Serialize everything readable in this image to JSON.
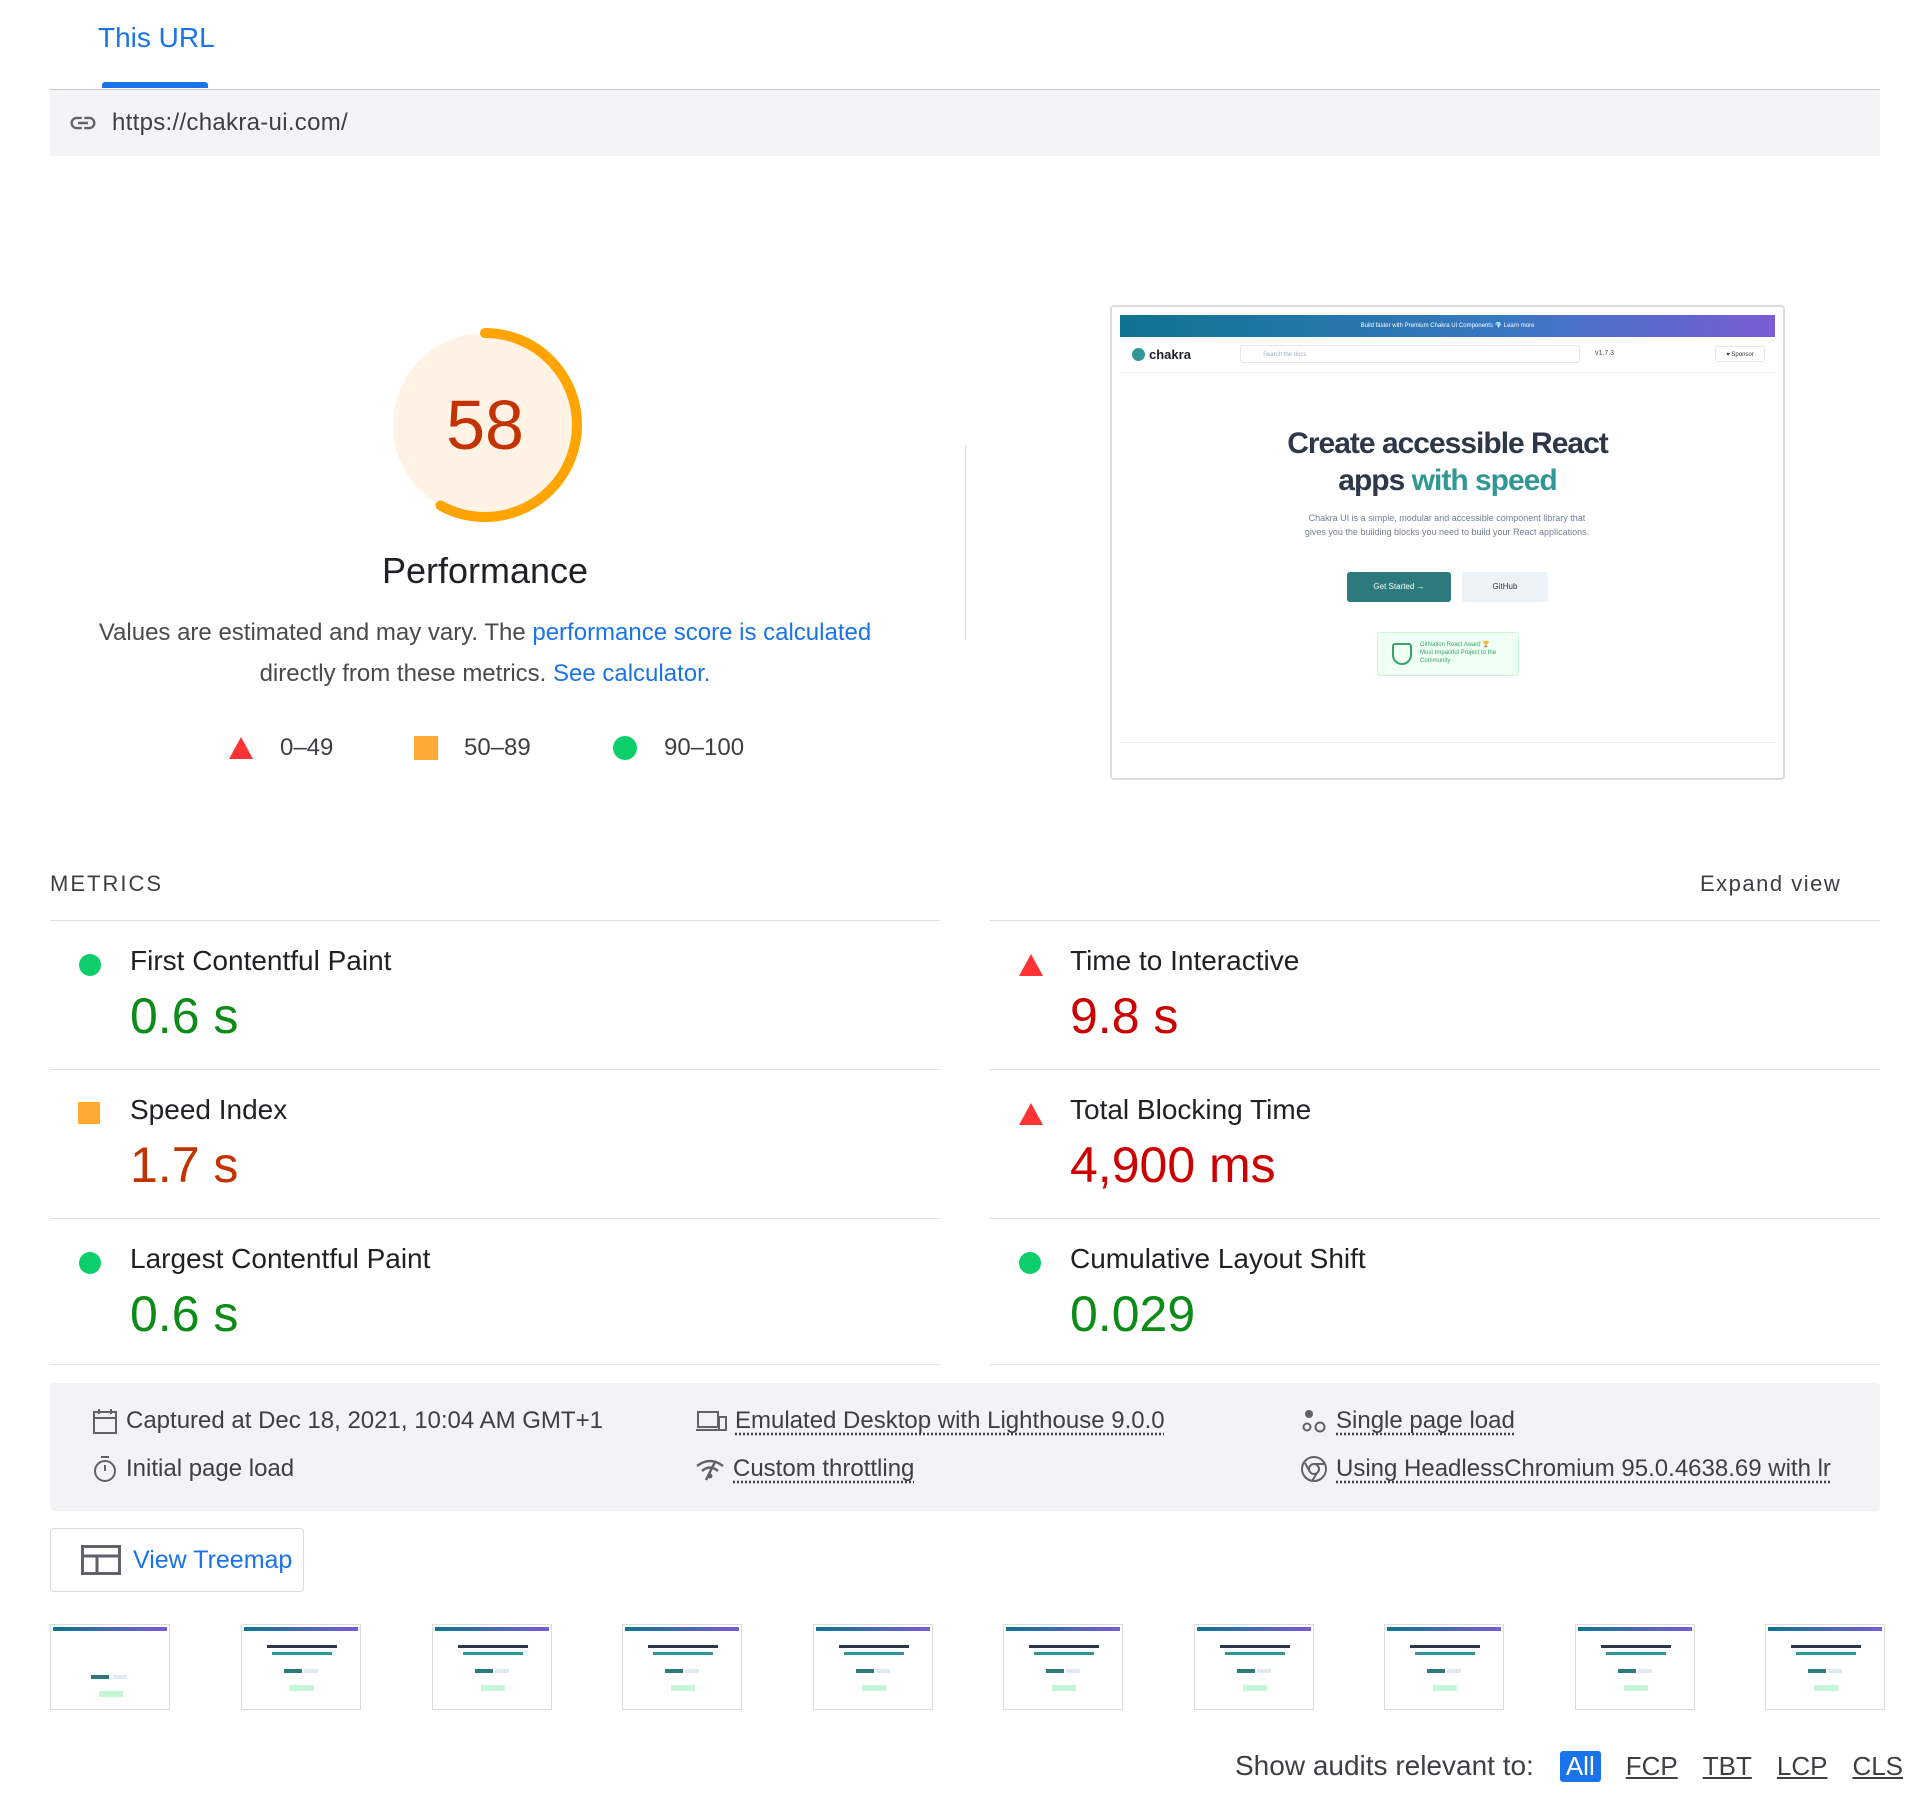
{
  "tabs": [
    {
      "label": "This URL"
    }
  ],
  "url": "https://chakra-ui.com/",
  "performance": {
    "score": "58",
    "score_value": 58,
    "title": "Performance",
    "desc_prefix": "Values are estimated and may vary. The ",
    "desc_link1": "performance score is calculated",
    "desc_middle": "directly from these metrics. ",
    "desc_link2": "See calculator."
  },
  "legend": [
    {
      "label": "0–49",
      "icon": "fail-triangle-icon",
      "color": "#ff3333"
    },
    {
      "label": "50–89",
      "icon": "average-square-icon",
      "color": "#ffaa33"
    },
    {
      "label": "90–100",
      "icon": "pass-circle-icon",
      "color": "#0cce6b"
    }
  ],
  "screenshot": {
    "banner": "Build faster with Premium Chakra UI Components 💎     Learn more",
    "logo": "chakra",
    "search_placeholder": "Search the docs",
    "version": "v1.7.3",
    "sponsor": "♥ Sponsor",
    "headline_1": "Create accessible React",
    "headline_2a": "apps ",
    "headline_2b": "with speed",
    "subtitle": "Chakra UI is a simple, modular and accessible component library that gives you the building blocks you need to build your React applications.",
    "btn_primary": "Get Started →",
    "btn_secondary": "GitHub",
    "award_line1": "GitNation React Award 🏆",
    "award_line2": "Most Impactful Project to the Community"
  },
  "metrics_section": {
    "title": "METRICS",
    "expand": "Expand view",
    "items": [
      {
        "label": "First Contentful Paint",
        "value": "0.6 s",
        "rating": "pass"
      },
      {
        "label": "Time to Interactive",
        "value": "9.8 s",
        "rating": "fail"
      },
      {
        "label": "Speed Index",
        "value": "1.7 s",
        "rating": "average"
      },
      {
        "label": "Total Blocking Time",
        "value": "4,900 ms",
        "rating": "fail"
      },
      {
        "label": "Largest Contentful Paint",
        "value": "0.6 s",
        "rating": "pass"
      },
      {
        "label": "Cumulative Layout Shift",
        "value": "0.029",
        "rating": "pass"
      }
    ]
  },
  "runtime": {
    "captured": "Captured at Dec 18, 2021, 10:04 AM GMT+1",
    "initial_load": "Initial page load",
    "emulated": "Emulated Desktop with Lighthouse 9.0.0",
    "throttling": "Custom throttling",
    "single_page": "Single page load",
    "browser": "Using HeadlessChromium 95.0.4638.69 with lr"
  },
  "treemap_button": "View Treemap",
  "audit_filter": {
    "label": "Show audits relevant to:",
    "options": [
      "All",
      "FCP",
      "TBT",
      "LCP",
      "CLS"
    ],
    "selected": "All"
  },
  "colors": {
    "accent": "#1a73e8",
    "pass": "#0cce6b",
    "average": "#ffaa33",
    "fail": "#ff3333"
  }
}
